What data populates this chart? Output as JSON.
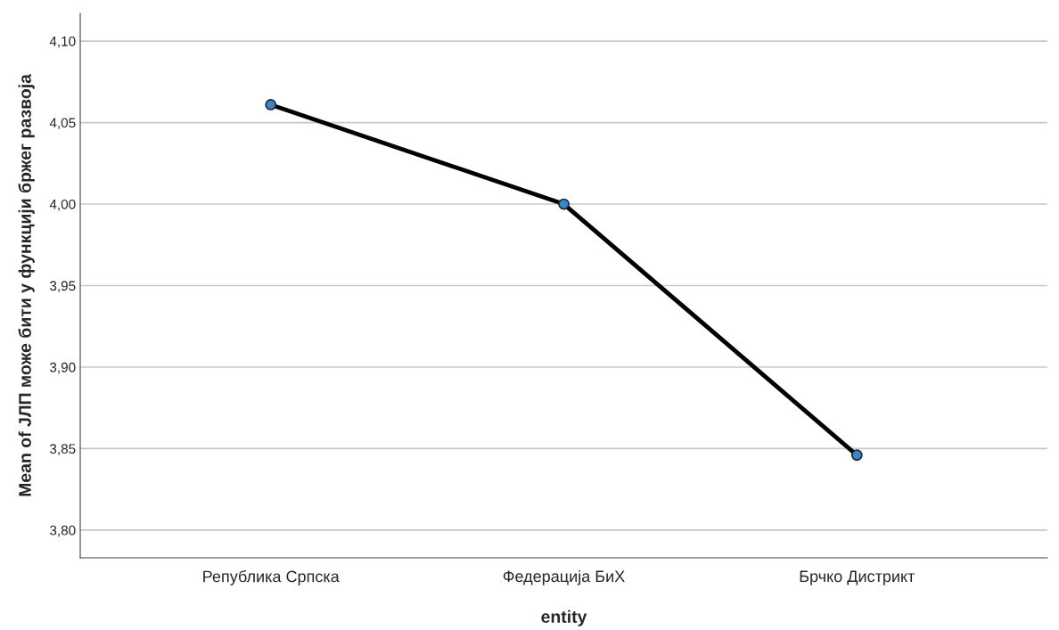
{
  "chart_data": {
    "type": "line",
    "xlabel": "entity",
    "ylabel": "Mean of ЈЛП може бити у функцији бржег развоја",
    "categories": [
      "Република Српска",
      "Федерација БиХ",
      "Брчко Дистрикт"
    ],
    "series": [
      {
        "color": "#000000",
        "values": [
          4.061,
          4.0,
          3.846
        ]
      }
    ],
    "marker": "circle",
    "line_style": "solid",
    "grid": "y",
    "ylim": [
      3.783,
      4.117
    ],
    "yticks": [
      {
        "value": 3.8,
        "label": "3,80"
      },
      {
        "value": 3.85,
        "label": "3,85"
      },
      {
        "value": 3.9,
        "label": "3,90"
      },
      {
        "value": 3.95,
        "label": "3,95"
      },
      {
        "value": 4.0,
        "label": "4,00"
      },
      {
        "value": 4.05,
        "label": "4,05"
      },
      {
        "value": 4.1,
        "label": "4,10"
      }
    ]
  }
}
